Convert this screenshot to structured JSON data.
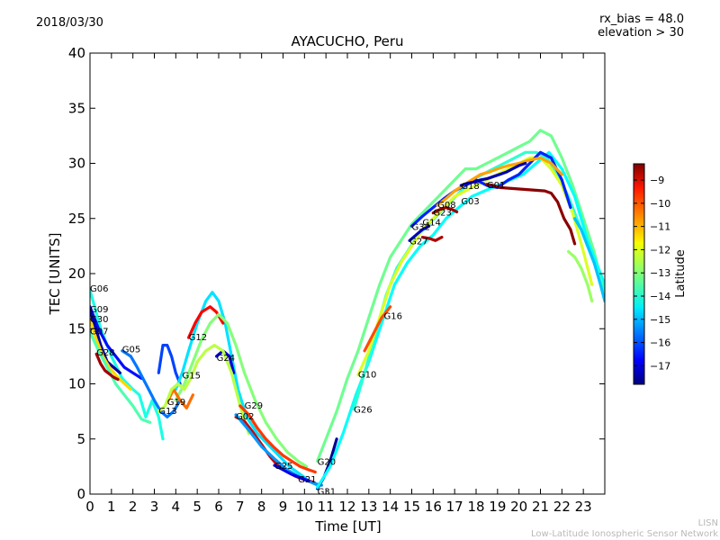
{
  "header": {
    "date": "2018/03/30",
    "rx_bias": "rx_bias = 48.0",
    "elevation": "elevation > 30"
  },
  "footer": {
    "line1": "LISN",
    "line2": "Low-Latitude Ionospheric Sensor Network"
  },
  "chart_data": {
    "type": "scatter",
    "title": "AYACUCHO, Peru",
    "xlabel": "Time [UT]",
    "ylabel": "TEC [UNITS]",
    "xlim": [
      0,
      24
    ],
    "ylim": [
      0,
      40
    ],
    "xticks": [
      0,
      1,
      2,
      3,
      4,
      5,
      6,
      7,
      8,
      9,
      10,
      11,
      12,
      13,
      14,
      15,
      16,
      17,
      18,
      19,
      20,
      21,
      22,
      23
    ],
    "yticks": [
      0,
      5,
      10,
      15,
      20,
      25,
      30,
      35,
      40
    ],
    "grid": false,
    "colorbar": {
      "label": "Latitude",
      "range": [
        -17.8,
        -8.3
      ],
      "ticks": [
        -9,
        -10,
        -11,
        -12,
        -13,
        -14,
        -15,
        -16,
        -17
      ]
    },
    "satellite_labels": [
      {
        "label": "G06",
        "x": 0.0,
        "y": 18.7
      },
      {
        "label": "G09",
        "x": 0.0,
        "y": 16.8
      },
      {
        "label": "G30",
        "x": 0.0,
        "y": 15.9
      },
      {
        "label": "G07",
        "x": 0.0,
        "y": 14.8
      },
      {
        "label": "G28",
        "x": 0.3,
        "y": 12.9
      },
      {
        "label": "G05",
        "x": 1.5,
        "y": 13.2
      },
      {
        "label": "G12",
        "x": 4.6,
        "y": 14.3
      },
      {
        "label": "G15",
        "x": 4.3,
        "y": 10.8
      },
      {
        "label": "G24",
        "x": 5.9,
        "y": 12.4
      },
      {
        "label": "G19",
        "x": 3.6,
        "y": 8.4
      },
      {
        "label": "G13",
        "x": 3.2,
        "y": 7.6
      },
      {
        "label": "G29",
        "x": 7.2,
        "y": 8.1
      },
      {
        "label": "G02",
        "x": 6.8,
        "y": 7.1
      },
      {
        "label": "G25",
        "x": 8.6,
        "y": 2.6
      },
      {
        "label": "G21",
        "x": 9.7,
        "y": 1.4
      },
      {
        "label": "G20",
        "x": 10.6,
        "y": 3.0
      },
      {
        "label": "G31",
        "x": 10.6,
        "y": 0.3
      },
      {
        "label": "G26",
        "x": 12.3,
        "y": 7.7
      },
      {
        "label": "G10",
        "x": 12.5,
        "y": 10.9
      },
      {
        "label": "G16",
        "x": 13.7,
        "y": 16.2
      },
      {
        "label": "G27",
        "x": 14.9,
        "y": 23.0
      },
      {
        "label": "G32",
        "x": 15.0,
        "y": 24.3
      },
      {
        "label": "G14",
        "x": 15.5,
        "y": 24.7
      },
      {
        "label": "G23",
        "x": 16.0,
        "y": 25.6
      },
      {
        "label": "G08",
        "x": 16.2,
        "y": 26.3
      },
      {
        "label": "G03",
        "x": 17.3,
        "y": 26.6
      },
      {
        "label": "G18",
        "x": 17.3,
        "y": 28.0
      },
      {
        "label": "G01",
        "x": 18.5,
        "y": 28.1
      }
    ],
    "series": [
      {
        "lat": -14.0,
        "x": [
          0,
          0.5,
          1,
          1.5,
          2,
          2.3,
          2.6,
          2.9,
          3.2,
          3.4
        ],
        "y": [
          18.5,
          15,
          12.5,
          10.5,
          9.5,
          9,
          7,
          8.5,
          7,
          5
        ]
      },
      {
        "lat": -16.5,
        "x": [
          0,
          0.4,
          0.8,
          1.2,
          1.6,
          2,
          2.4
        ],
        "y": [
          17,
          15,
          13.5,
          12.5,
          11.5,
          11,
          10.5
        ]
      },
      {
        "lat": -17.5,
        "x": [
          0,
          0.2,
          0.5,
          0.8,
          1.1,
          1.4
        ],
        "y": [
          16.6,
          15.5,
          13.5,
          12,
          11.5,
          11
        ]
      },
      {
        "lat": -11.5,
        "x": [
          0,
          0.3,
          0.6,
          0.9,
          1.2,
          1.5,
          1.9
        ],
        "y": [
          15.8,
          14,
          12.5,
          11.5,
          10.8,
          10.2,
          9.5
        ]
      },
      {
        "lat": -13.5,
        "x": [
          0,
          0.4,
          0.8,
          1.2,
          1.6,
          2,
          2.4,
          2.8
        ],
        "y": [
          14.7,
          13,
          11.5,
          10,
          9,
          8,
          6.8,
          6.5
        ]
      },
      {
        "lat": -8.6,
        "x": [
          0.3,
          0.5,
          0.7,
          0.9,
          1.1,
          1.3
        ],
        "y": [
          12.7,
          11.8,
          11.2,
          10.9,
          10.6,
          10.4
        ]
      },
      {
        "lat": -15.5,
        "x": [
          1.5,
          1.9,
          2.2,
          2.6,
          3,
          3.3,
          3.6,
          3.9,
          4.2
        ],
        "y": [
          13,
          12.5,
          11.5,
          10,
          8.5,
          7.5,
          7,
          7.5,
          8.5
        ]
      },
      {
        "lat": -16.0,
        "x": [
          3.2,
          3.4,
          3.6,
          3.8,
          4.0,
          4.2
        ],
        "y": [
          11,
          13.5,
          13.5,
          12.5,
          11,
          10
        ]
      },
      {
        "lat": -14.5,
        "x": [
          4.0,
          4.3,
          4.6,
          5.0,
          5.4,
          5.7,
          6.0,
          6.3,
          6.6,
          6.9,
          7.3,
          7.8,
          8.3,
          8.8,
          9.3,
          9.8,
          10.2,
          10.6
        ],
        "y": [
          9.5,
          11,
          13,
          15.5,
          17.5,
          18.3,
          17.5,
          15.5,
          12.5,
          9.5,
          7,
          5.5,
          4.5,
          3.5,
          2.5,
          1.8,
          1.2,
          0.8
        ]
      },
      {
        "lat": -9.5,
        "x": [
          4.6,
          4.9,
          5.2,
          5.6,
          5.9,
          6.2
        ],
        "y": [
          14.2,
          15.5,
          16.5,
          17,
          16.5,
          15.5
        ]
      },
      {
        "lat": -13.0,
        "x": [
          4.0,
          4.4,
          4.8,
          5.2,
          5.6,
          6.0,
          6.4,
          6.8,
          7.2,
          7.7,
          8.2,
          8.7,
          9.2,
          9.7,
          10.1
        ],
        "y": [
          8.5,
          10,
          12,
          14,
          15.5,
          16.3,
          15.5,
          13.5,
          11,
          8.5,
          6.5,
          5,
          3.8,
          3,
          2.5
        ]
      },
      {
        "lat": -17.0,
        "x": [
          5.9,
          6.2,
          6.5,
          6.7
        ],
        "y": [
          12.5,
          13,
          12.5,
          11
        ]
      },
      {
        "lat": -10.5,
        "x": [
          3.6,
          3.9,
          4.2,
          4.5,
          4.8
        ],
        "y": [
          8.3,
          9.5,
          8.5,
          7.8,
          9
        ]
      },
      {
        "lat": -12.5,
        "x": [
          3.2,
          3.5,
          3.8,
          4.1,
          4.4,
          4.7,
          5.0,
          5.4,
          5.8,
          6.2,
          6.6,
          7.0,
          7.4
        ],
        "y": [
          7.5,
          8,
          9.5,
          10,
          9.5,
          10.5,
          12,
          13,
          13.5,
          13,
          11,
          8,
          5.5
        ]
      },
      {
        "lat": -10.0,
        "x": [
          7.0,
          7.4,
          7.8,
          8.2,
          8.6,
          9.0,
          9.4,
          9.8,
          10.2,
          10.5
        ],
        "y": [
          8,
          7.2,
          6,
          5,
          4.2,
          3.5,
          3,
          2.5,
          2.2,
          2
        ]
      },
      {
        "lat": -9.0,
        "x": [
          6.8,
          7.2,
          7.6,
          8.0,
          8.4,
          8.8,
          9.2,
          9.6,
          10.0,
          10.4
        ],
        "y": [
          7,
          6.6,
          5.6,
          4.5,
          3.4,
          2.5,
          2,
          1.6,
          1.3,
          1.1
        ]
      },
      {
        "lat": -15.2,
        "x": [
          6.8,
          7.4,
          8.0,
          8.6,
          9.2,
          9.8,
          10.4,
          10.8
        ],
        "y": [
          7.2,
          5.8,
          4.3,
          3.2,
          2.2,
          1.5,
          1,
          0.8
        ]
      },
      {
        "lat": -16.8,
        "x": [
          8.6,
          9.0,
          9.4,
          9.8,
          10.2
        ],
        "y": [
          2.6,
          2.2,
          1.8,
          1.5,
          1.2
        ]
      },
      {
        "lat": -13.2,
        "x": [
          10.6,
          11.0,
          11.5,
          12.0,
          12.5,
          13.0,
          13.5,
          14.0,
          14.5,
          15.0,
          15.5,
          16.0,
          16.5,
          17.0,
          17.5,
          18.0,
          18.5,
          19.0,
          19.5,
          20.0,
          20.5,
          21.0,
          21.5,
          22.0,
          22.5,
          23.0,
          23.5,
          24.0
        ],
        "y": [
          3,
          5,
          7.5,
          10.5,
          13,
          16,
          19,
          21.5,
          23,
          24.5,
          25.5,
          26.5,
          27.5,
          28.5,
          29.5,
          29.5,
          30,
          30.5,
          31,
          31.5,
          32,
          33,
          32.5,
          30.5,
          28,
          25,
          22,
          18
        ]
      },
      {
        "lat": -17.6,
        "x": [
          10.6,
          10.9,
          11.2,
          11.5
        ],
        "y": [
          0.5,
          1.5,
          3,
          5
        ]
      },
      {
        "lat": -14.2,
        "x": [
          10.6,
          11.2,
          11.8,
          12.4,
          13.0,
          13.6,
          14.2,
          14.8,
          15.4,
          16.0,
          16.6,
          17.2,
          17.8,
          18.4,
          19.0,
          19.6,
          20.2,
          20.8,
          21.4,
          22.0,
          22.6,
          23.2,
          24.0
        ],
        "y": [
          0.6,
          2.5,
          5.5,
          9,
          12,
          15.5,
          19,
          21,
          22.5,
          23.5,
          25,
          26,
          27,
          27.5,
          28,
          28.5,
          29,
          30,
          31,
          29.5,
          27,
          23,
          19
        ]
      },
      {
        "lat": -13.8,
        "x": [
          12.3,
          12.8,
          13.3,
          13.8,
          14.3,
          14.8,
          15.3,
          15.8,
          16.3,
          16.8,
          17.3,
          17.8,
          18.3,
          18.8,
          19.3,
          19.8,
          20.3,
          20.8,
          21.3,
          21.8,
          22.3,
          22.8,
          23.3,
          24.0
        ],
        "y": [
          7.7,
          11,
          14.5,
          18,
          20.5,
          22,
          23.5,
          24.5,
          25.5,
          26.5,
          27.5,
          28.5,
          29,
          29.5,
          30,
          30.5,
          31,
          31,
          30.5,
          29,
          27,
          24.5,
          22,
          18.5
        ]
      },
      {
        "lat": -12.2,
        "x": [
          12.5,
          13.0,
          13.5,
          14.0,
          14.5,
          15.0,
          15.5,
          16.0,
          16.5,
          17.0,
          17.5,
          18.0,
          18.5,
          19.0,
          19.5,
          20.0,
          20.5,
          21.0,
          21.5,
          22.0,
          22.5,
          23.0,
          23.4
        ],
        "y": [
          10.8,
          13,
          16,
          19,
          21,
          22.5,
          24,
          25,
          26,
          27,
          27.5,
          28,
          28.5,
          29,
          29.5,
          30,
          30.5,
          30.5,
          29.5,
          28,
          25.5,
          22,
          19
        ]
      },
      {
        "lat": -10.2,
        "x": [
          12.8,
          13.2,
          13.6,
          14.0
        ],
        "y": [
          13,
          14.5,
          16,
          17
        ]
      },
      {
        "lat": -17.2,
        "x": [
          14.9,
          15.2,
          15.5,
          15.8
        ],
        "y": [
          23,
          23.5,
          24,
          24.3
        ]
      },
      {
        "lat": -8.7,
        "x": [
          15.5,
          15.8,
          16.1,
          16.4
        ],
        "y": [
          23.3,
          23.2,
          23,
          23.3
        ]
      },
      {
        "lat": -16.3,
        "x": [
          15.0,
          15.5,
          16.0,
          16.5,
          17.0,
          17.5,
          18.0,
          18.5,
          19.0,
          19.5,
          20.0,
          20.5,
          21.0,
          21.5,
          22.0,
          22.4
        ],
        "y": [
          24.3,
          25.2,
          26,
          26.8,
          27.5,
          28,
          28.5,
          28,
          27.8,
          28.5,
          29,
          30,
          31,
          30.5,
          28.5,
          26
        ]
      },
      {
        "lat": -8.5,
        "x": [
          16.0,
          16.3,
          16.6,
          16.9,
          17.1
        ],
        "y": [
          25.5,
          25.8,
          26,
          25.8,
          25.6
        ]
      },
      {
        "lat": -11.0,
        "x": [
          16.2,
          16.6,
          17.0,
          17.4,
          17.8,
          18.2,
          18.6,
          19.0,
          19.5,
          20.0,
          20.5,
          21.0,
          21.5,
          22.0
        ],
        "y": [
          26.2,
          26.8,
          27.5,
          28,
          28.5,
          29,
          29.2,
          29.5,
          29.8,
          30,
          30.3,
          30.5,
          30,
          29
        ]
      },
      {
        "lat": -17.4,
        "x": [
          17.3,
          17.6,
          17.9,
          18.2,
          18.5,
          18.8,
          19.1,
          19.4,
          19.7,
          20.0,
          20.3
        ],
        "y": [
          28,
          28.2,
          28.3,
          28.5,
          28.6,
          28.8,
          29,
          29.2,
          29.5,
          29.8,
          30
        ]
      },
      {
        "lat": -8.4,
        "x": [
          18.5,
          18.8,
          19.1,
          21.2,
          21.5,
          21.8,
          22.1,
          22.4,
          22.6
        ],
        "y": [
          28.1,
          28,
          27.8,
          27.5,
          27.3,
          26.5,
          25,
          24,
          22.7
        ]
      },
      {
        "lat": -14.8,
        "x": [
          22.6,
          22.9,
          23.2,
          23.5,
          23.8,
          24.0
        ],
        "y": [
          25,
          24,
          22.5,
          21,
          19,
          17.5
        ]
      },
      {
        "lat": -12.8,
        "x": [
          22.3,
          22.6,
          22.9,
          23.2,
          23.4
        ],
        "y": [
          22,
          21.5,
          20.5,
          19,
          17.5
        ]
      }
    ]
  }
}
